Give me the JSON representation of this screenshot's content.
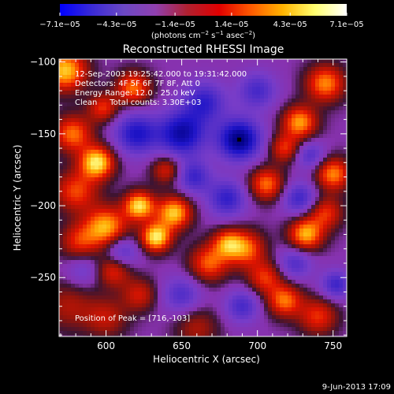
{
  "chart_data": {
    "type": "heatmap",
    "title": "Reconstructed RHESSI Image",
    "xlabel": "Heliocentric X (arcsec)",
    "ylabel": "Heliocentric Y (arcsec)",
    "xlim": [
      569,
      759
    ],
    "ylim": [
      -291,
      -98
    ],
    "x_ticks": [
      600,
      650,
      700,
      750
    ],
    "y_ticks": [
      -100,
      -150,
      -200,
      -250
    ],
    "colorbar": {
      "min": -7.1e-05,
      "max": 7.1e-05,
      "tick_values": [
        -7.1e-05,
        -4.3e-05,
        -1.4e-05,
        1.4e-05,
        4.3e-05,
        7.1e-05
      ],
      "tick_labels": [
        "−7.1e−05",
        "−4.3e−05",
        "−1.4e−05",
        "1.4e−05",
        "4.3e−05",
        "7.1e−05"
      ],
      "units_html": "(photons cm<tspan baseline-shift=\"super\" font-size=\"7\">−2</tspan> s<tspan baseline-shift=\"super\" font-size=\"7\">−1</tspan> asec<tspan baseline-shift=\"super\" font-size=\"7\">−2</tspan>)",
      "colors": [
        "#0000ff",
        "#3a2ad6",
        "#6b48c4",
        "#9040b0",
        "#b02030",
        "#e00000",
        "#ff5a00",
        "#ffb400",
        "#ffff70",
        "#ffffff"
      ]
    },
    "annotations": [
      "12-Sep-2003 19:25:42.000 to 19:31:42.000",
      "Detectors: 4F 5F 6F 7F 8F, Att 0",
      "Energy Range: 12.0 - 25.0 keV",
      "Clean     Total counts: 3.30E+03"
    ],
    "peak_label": "Position of Peak = [716,-103]",
    "marker": {
      "x": 688,
      "y": -154
    },
    "sources": [
      {
        "x": 573,
        "y": -106,
        "amp": 0.9,
        "s": 10
      },
      {
        "x": 578,
        "y": -150,
        "amp": 0.7,
        "s": 9
      },
      {
        "x": 580,
        "y": -190,
        "amp": 0.6,
        "s": 10
      },
      {
        "x": 582,
        "y": -225,
        "amp": 0.5,
        "s": 9
      },
      {
        "x": 575,
        "y": -270,
        "amp": 0.35,
        "s": 12
      },
      {
        "x": 594,
        "y": -170,
        "amp": 1.0,
        "s": 8
      },
      {
        "x": 598,
        "y": -132,
        "amp": 0.55,
        "s": 7
      },
      {
        "x": 600,
        "y": -215,
        "amp": 0.85,
        "s": 10
      },
      {
        "x": 605,
        "y": -245,
        "amp": 0.55,
        "s": 8
      },
      {
        "x": 618,
        "y": -118,
        "amp": 0.7,
        "s": 8
      },
      {
        "x": 622,
        "y": -200,
        "amp": 0.95,
        "s": 7
      },
      {
        "x": 633,
        "y": -222,
        "amp": 1.0,
        "s": 7
      },
      {
        "x": 622,
        "y": -262,
        "amp": 0.45,
        "s": 8
      },
      {
        "x": 640,
        "y": -175,
        "amp": 0.5,
        "s": 7
      },
      {
        "x": 645,
        "y": -205,
        "amp": 0.9,
        "s": 8
      },
      {
        "x": 668,
        "y": -240,
        "amp": 0.65,
        "s": 9
      },
      {
        "x": 680,
        "y": -226,
        "amp": 0.6,
        "s": 7
      },
      {
        "x": 692,
        "y": -230,
        "amp": 0.7,
        "s": 9
      },
      {
        "x": 705,
        "y": -250,
        "amp": 0.55,
        "s": 8
      },
      {
        "x": 706,
        "y": -185,
        "amp": 0.7,
        "s": 8
      },
      {
        "x": 718,
        "y": -160,
        "amp": 0.55,
        "s": 7
      },
      {
        "x": 728,
        "y": -142,
        "amp": 0.8,
        "s": 8
      },
      {
        "x": 745,
        "y": -115,
        "amp": 0.75,
        "s": 9
      },
      {
        "x": 750,
        "y": -178,
        "amp": 0.75,
        "s": 8
      },
      {
        "x": 745,
        "y": -205,
        "amp": 0.55,
        "s": 8
      },
      {
        "x": 732,
        "y": -220,
        "amp": 0.85,
        "s": 8
      },
      {
        "x": 718,
        "y": -266,
        "amp": 0.7,
        "s": 8
      },
      {
        "x": 740,
        "y": -277,
        "amp": 0.55,
        "s": 9
      },
      {
        "x": 600,
        "y": -278,
        "amp": 0.4,
        "s": 10
      },
      {
        "x": 660,
        "y": -285,
        "amp": 0.35,
        "s": 10
      },
      {
        "x": 688,
        "y": -154,
        "amp": -1.0,
        "s": 10
      },
      {
        "x": 650,
        "y": -150,
        "amp": -0.85,
        "s": 11
      },
      {
        "x": 665,
        "y": -128,
        "amp": -0.6,
        "s": 10
      },
      {
        "x": 700,
        "y": -120,
        "amp": -0.5,
        "s": 9
      },
      {
        "x": 620,
        "y": -150,
        "amp": -0.7,
        "s": 10
      },
      {
        "x": 610,
        "y": -232,
        "amp": -0.5,
        "s": 8
      },
      {
        "x": 658,
        "y": -180,
        "amp": -0.55,
        "s": 8
      },
      {
        "x": 680,
        "y": -195,
        "amp": -0.6,
        "s": 9
      },
      {
        "x": 728,
        "y": -195,
        "amp": -0.55,
        "s": 8
      },
      {
        "x": 735,
        "y": -165,
        "amp": -0.45,
        "s": 7
      },
      {
        "x": 650,
        "y": -262,
        "amp": -0.45,
        "s": 9
      },
      {
        "x": 690,
        "y": -270,
        "amp": -0.5,
        "s": 8
      },
      {
        "x": 725,
        "y": -240,
        "amp": -0.45,
        "s": 8
      },
      {
        "x": 752,
        "y": -255,
        "amp": -0.55,
        "s": 7
      },
      {
        "x": 585,
        "y": -245,
        "amp": -0.3,
        "s": 8
      }
    ]
  },
  "footer": {
    "date": "9-Jun-2013 17:09"
  }
}
